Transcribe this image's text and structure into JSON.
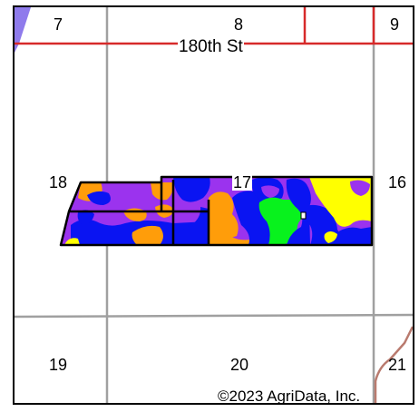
{
  "map": {
    "road_label": "180th St",
    "copyright": "©2023 AgriData, Inc.",
    "sections": {
      "s7": "7",
      "s8": "8",
      "s9": "9",
      "s16": "16",
      "s17": "17",
      "s18": "18",
      "s19": "19",
      "s20": "20",
      "s21": "21"
    },
    "colors": {
      "grid": "#a0a0a0",
      "road": "#d72a2a",
      "boundary": "#000000",
      "soil_purple": "#9b33ee",
      "soil_blue": "#0a14f2",
      "soil_orange": "#ff9d0a",
      "soil_green": "#08f21d",
      "soil_yellow": "#ffff00",
      "water": "#8f7bec",
      "brown_road": "#b97a6e"
    }
  }
}
